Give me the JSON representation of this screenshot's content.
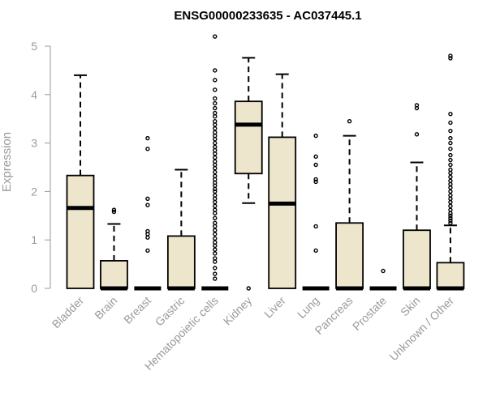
{
  "chart_data": {
    "type": "box",
    "title": "ENSG00000233635 - AC037445.1",
    "xlabel": "",
    "ylabel": "Expression",
    "ylim": [
      0,
      5.2
    ],
    "yticks": [
      "0",
      "1",
      "2",
      "3",
      "4",
      "5"
    ],
    "categories": [
      "Bladder",
      "Brain",
      "Breast",
      "Gastric",
      "Hematopoietic cells",
      "Kidney",
      "Liver",
      "Lung",
      "Pancreas",
      "Prostate",
      "Skin",
      "Unknown / Other"
    ],
    "boxes": [
      {
        "q1": 0,
        "median": 1.66,
        "q3": 2.33,
        "whisker_low": 0,
        "whisker_high": 4.4,
        "outliers": []
      },
      {
        "q1": 0,
        "median": 0,
        "q3": 0.57,
        "whisker_low": 0,
        "whisker_high": 1.33,
        "outliers": [
          1.58,
          1.62
        ]
      },
      {
        "q1": 0,
        "median": 0,
        "q3": 0,
        "whisker_low": 0,
        "whisker_high": 0,
        "outliers": [
          0.78,
          1.05,
          1.12,
          1.18,
          1.72,
          1.85,
          2.88,
          3.1
        ]
      },
      {
        "q1": 0,
        "median": 0,
        "q3": 1.08,
        "whisker_low": 0,
        "whisker_high": 2.45,
        "outliers": []
      },
      {
        "q1": 0,
        "median": 0,
        "q3": 0,
        "whisker_low": 0,
        "whisker_high": 0,
        "outliers": [
          0.2,
          0.3,
          0.42,
          0.55,
          0.62,
          0.72,
          0.8,
          0.88,
          0.95,
          1.03,
          1.12,
          1.2,
          1.28,
          1.35,
          1.45,
          1.55,
          1.62,
          1.7,
          1.78,
          1.85,
          1.92,
          2.0,
          2.05,
          2.12,
          2.18,
          2.25,
          2.32,
          2.4,
          2.48,
          2.55,
          2.62,
          2.7,
          2.78,
          2.85,
          2.92,
          3.0,
          3.08,
          3.15,
          3.22,
          3.3,
          3.38,
          3.45,
          3.55,
          3.62,
          3.72,
          3.82,
          3.92,
          4.1,
          4.3,
          4.5,
          5.2
        ]
      },
      {
        "q1": 2.37,
        "median": 3.38,
        "q3": 3.86,
        "whisker_low": 1.76,
        "whisker_high": 4.76,
        "outliers": [
          0
        ]
      },
      {
        "q1": 0,
        "median": 1.75,
        "q3": 3.12,
        "whisker_low": 0,
        "whisker_high": 4.42,
        "outliers": []
      },
      {
        "q1": 0,
        "median": 0,
        "q3": 0,
        "whisker_low": 0,
        "whisker_high": 0,
        "outliers": [
          0.78,
          1.28,
          2.2,
          2.25,
          2.55,
          2.72,
          3.15
        ]
      },
      {
        "q1": 0,
        "median": 0,
        "q3": 1.35,
        "whisker_low": 0,
        "whisker_high": 3.15,
        "outliers": [
          3.45
        ]
      },
      {
        "q1": 0,
        "median": 0,
        "q3": 0,
        "whisker_low": 0,
        "whisker_high": 0,
        "outliers": [
          0.36
        ]
      },
      {
        "q1": 0,
        "median": 0,
        "q3": 1.2,
        "whisker_low": 0,
        "whisker_high": 2.6,
        "outliers": [
          3.18,
          3.72,
          3.78
        ]
      },
      {
        "q1": 0,
        "median": 0,
        "q3": 0.53,
        "whisker_low": 0,
        "whisker_high": 1.3,
        "outliers": [
          1.35,
          1.4,
          1.45,
          1.5,
          1.55,
          1.62,
          1.7,
          1.78,
          1.85,
          1.92,
          2.0,
          2.08,
          2.15,
          2.22,
          2.3,
          2.38,
          2.45,
          2.55,
          2.65,
          2.75,
          2.88,
          3.0,
          3.1,
          3.25,
          3.42,
          3.6,
          4.75,
          4.8
        ]
      }
    ],
    "colors": {
      "box_fill": "#ede6cc",
      "box_stroke": "#000000",
      "axis_text": "#9a9a9a"
    }
  }
}
